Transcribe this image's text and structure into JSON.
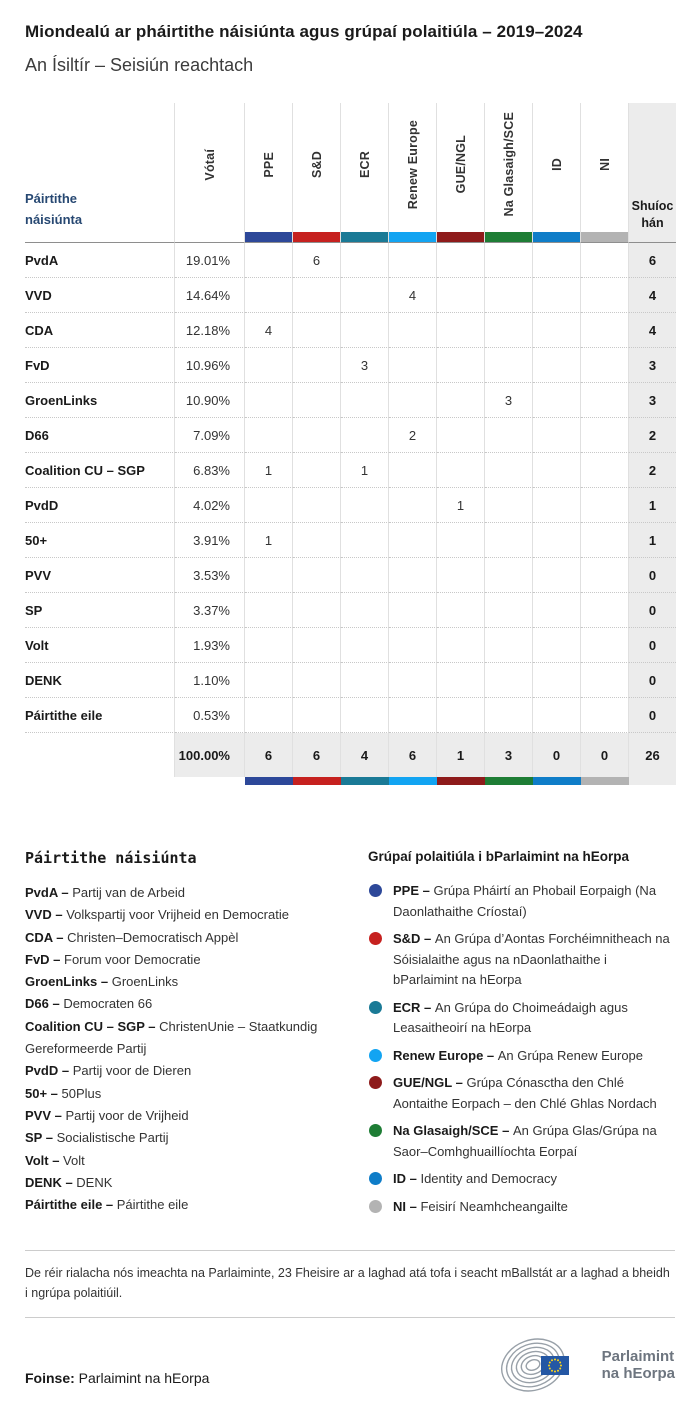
{
  "page": {
    "title": "Miondealú ar pháirtithe náisiúnta agus grúpaí polaitiúla – 2019–2024",
    "subtitle": "An Ísiltír – Seisiún reachtach"
  },
  "chart_data": {
    "type": "table",
    "title": "Miondealú ar pháirtithe náisiúnta agus grúpaí polaitiúla – 2019–2024",
    "subtitle": "An Ísiltír – Seisiún reachtach",
    "party_column_header": "Páirtithe náisiúnta",
    "votes_column_header": "Vótaí",
    "seats_column_header": "Shuíochán",
    "group_columns": [
      {
        "label": "PPE",
        "color": "#2d4899"
      },
      {
        "label": "S&D",
        "color": "#c6211f"
      },
      {
        "label": "ECR",
        "color": "#1a7a96"
      },
      {
        "label": "Renew Europe",
        "color": "#12a4f2"
      },
      {
        "label": "GUE/NGL",
        "color": "#8e1b1b"
      },
      {
        "label": "Na Glasaigh/SCE",
        "color": "#1e7d35"
      },
      {
        "label": "ID",
        "color": "#0f7dc8"
      },
      {
        "label": "NI",
        "color": "#b3b3b3"
      }
    ],
    "rows": [
      {
        "party": "PvdA",
        "votes": "19.01%",
        "seats_by_group": [
          null,
          6,
          null,
          null,
          null,
          null,
          null,
          null
        ],
        "total_seats": 6
      },
      {
        "party": "VVD",
        "votes": "14.64%",
        "seats_by_group": [
          null,
          null,
          null,
          4,
          null,
          null,
          null,
          null
        ],
        "total_seats": 4
      },
      {
        "party": "CDA",
        "votes": "12.18%",
        "seats_by_group": [
          4,
          null,
          null,
          null,
          null,
          null,
          null,
          null
        ],
        "total_seats": 4
      },
      {
        "party": "FvD",
        "votes": "10.96%",
        "seats_by_group": [
          null,
          null,
          3,
          null,
          null,
          null,
          null,
          null
        ],
        "total_seats": 3
      },
      {
        "party": "GroenLinks",
        "votes": "10.90%",
        "seats_by_group": [
          null,
          null,
          null,
          null,
          null,
          3,
          null,
          null
        ],
        "total_seats": 3
      },
      {
        "party": "D66",
        "votes": "7.09%",
        "seats_by_group": [
          null,
          null,
          null,
          2,
          null,
          null,
          null,
          null
        ],
        "total_seats": 2
      },
      {
        "party": "Coalition CU – SGP",
        "votes": "6.83%",
        "seats_by_group": [
          1,
          null,
          1,
          null,
          null,
          null,
          null,
          null
        ],
        "total_seats": 2
      },
      {
        "party": "PvdD",
        "votes": "4.02%",
        "seats_by_group": [
          null,
          null,
          null,
          null,
          1,
          null,
          null,
          null
        ],
        "total_seats": 1
      },
      {
        "party": "50+",
        "votes": "3.91%",
        "seats_by_group": [
          1,
          null,
          null,
          null,
          null,
          null,
          null,
          null
        ],
        "total_seats": 1
      },
      {
        "party": "PVV",
        "votes": "3.53%",
        "seats_by_group": [
          null,
          null,
          null,
          null,
          null,
          null,
          null,
          null
        ],
        "total_seats": 0
      },
      {
        "party": "SP",
        "votes": "3.37%",
        "seats_by_group": [
          null,
          null,
          null,
          null,
          null,
          null,
          null,
          null
        ],
        "total_seats": 0
      },
      {
        "party": "Volt",
        "votes": "1.93%",
        "seats_by_group": [
          null,
          null,
          null,
          null,
          null,
          null,
          null,
          null
        ],
        "total_seats": 0
      },
      {
        "party": "DENK",
        "votes": "1.10%",
        "seats_by_group": [
          null,
          null,
          null,
          null,
          null,
          null,
          null,
          null
        ],
        "total_seats": 0
      },
      {
        "party": "Páirtithe eile",
        "votes": "0.53%",
        "seats_by_group": [
          null,
          null,
          null,
          null,
          null,
          null,
          null,
          null
        ],
        "total_seats": 0
      }
    ],
    "total_row": {
      "votes": "100.00%",
      "seats_by_group": [
        6,
        6,
        4,
        6,
        1,
        3,
        0,
        0
      ],
      "total_seats": 26
    }
  },
  "party_legend": {
    "heading": "Páirtithe náisiúnta",
    "items": [
      {
        "abbr": "PvdA",
        "name": "Partij van de Arbeid"
      },
      {
        "abbr": "VVD",
        "name": "Volkspartij voor Vrijheid en Democratie"
      },
      {
        "abbr": "CDA",
        "name": "Christen–Democratisch Appèl"
      },
      {
        "abbr": "FvD",
        "name": "Forum voor Democratie"
      },
      {
        "abbr": "GroenLinks",
        "name": "GroenLinks"
      },
      {
        "abbr": "D66",
        "name": "Democraten 66"
      },
      {
        "abbr": "Coalition CU – SGP",
        "name": "ChristenUnie – Staatkundig Gereformeerde Partij"
      },
      {
        "abbr": "PvdD",
        "name": "Partij voor de Dieren"
      },
      {
        "abbr": "50+",
        "name": "50Plus"
      },
      {
        "abbr": "PVV",
        "name": "Partij voor de Vrijheid"
      },
      {
        "abbr": "SP",
        "name": "Socialistische Partij"
      },
      {
        "abbr": "Volt",
        "name": "Volt"
      },
      {
        "abbr": "DENK",
        "name": "DENK"
      },
      {
        "abbr": "Páirtithe eile",
        "name": "Páirtithe eile"
      }
    ]
  },
  "group_legend": {
    "heading": "Grúpaí polaitiúla i bParlaimint na hEorpa",
    "items": [
      {
        "abbr": "PPE",
        "color": "#2d4899",
        "name": "Grúpa Pháirtí an Phobail Eorpaigh (Na Daonlathaithe Críostaí)"
      },
      {
        "abbr": "S&D",
        "color": "#c6211f",
        "name": "An Grúpa d’Aontas Forchéimnitheach na Sóisialaithe agus na nDaonlathaithe i bParlaimint na hEorpa"
      },
      {
        "abbr": "ECR",
        "color": "#1a7a96",
        "name": "An Grúpa do Choimeádaigh agus Leasaitheoirí na hEorpa"
      },
      {
        "abbr": "Renew Europe",
        "color": "#12a4f2",
        "name": "An Grúpa Renew Europe"
      },
      {
        "abbr": "GUE/NGL",
        "color": "#8e1b1b",
        "name": "Grúpa Cónasctha den Chlé Aontaithe Eorpach – den Chlé Ghlas Nordach"
      },
      {
        "abbr": "Na Glasaigh/SCE",
        "color": "#1e7d35",
        "name": "An Grúpa Glas/Grúpa na Saor–Comhghuaillíochta Eorpaí"
      },
      {
        "abbr": "ID",
        "color": "#0f7dc8",
        "name": "Identity and Democracy"
      },
      {
        "abbr": "NI",
        "color": "#b3b3b3",
        "name": "Feisirí Neamhcheangailte"
      }
    ]
  },
  "footer": {
    "note": "De réir rialacha nós imeachta na Parlaiminte, 23 Fheisire ar a laghad atá tofa i seacht mBallstát ar a laghad a bheidh i ngrúpa polaitiúil.",
    "source_label": "Foinse:",
    "source_value": "Parlaimint na hEorpa",
    "logo_line1": "Parlaimint",
    "logo_line2": "na hEorpa"
  }
}
